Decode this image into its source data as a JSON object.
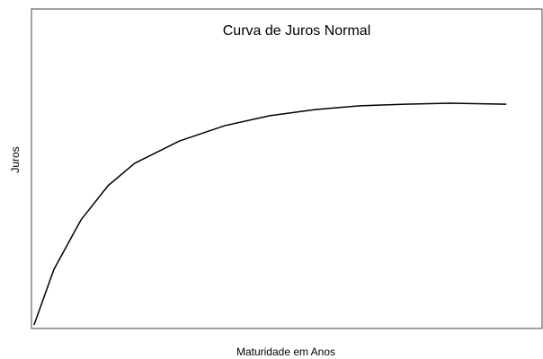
{
  "chart_data": {
    "type": "line",
    "title": "Curva de Juros Normal",
    "x_label": "Maturidade em Anos",
    "y_label": "Juros",
    "x": [
      0.005,
      0.044,
      0.097,
      0.15,
      0.202,
      0.29,
      0.379,
      0.467,
      0.555,
      0.643,
      0.731,
      0.819,
      0.93
    ],
    "series": [
      {
        "color": "#000000",
        "values": [
          0.011,
          0.185,
          0.34,
          0.447,
          0.517,
          0.587,
          0.635,
          0.666,
          0.685,
          0.697,
          0.702,
          0.705,
          0.702
        ]
      }
    ],
    "xlim": [
      0,
      1
    ],
    "ylim": [
      0,
      1
    ]
  }
}
